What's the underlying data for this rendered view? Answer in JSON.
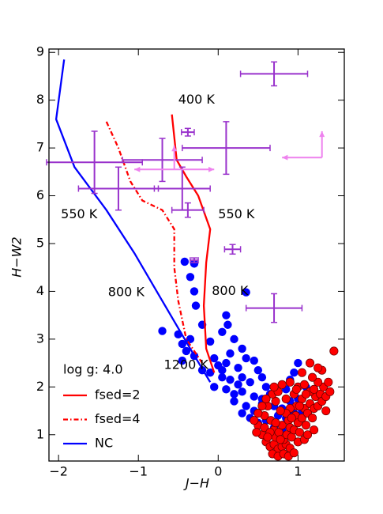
{
  "chart_data": {
    "type": "scatter",
    "xlabel": "J−H",
    "ylabel": "H−W2",
    "xlim": [
      -2.12,
      1.58
    ],
    "ylim": [
      0.45,
      9.07
    ],
    "xticks": [
      {
        "value": -2,
        "label": "−2"
      },
      {
        "value": -1,
        "label": "−1"
      },
      0,
      1
    ],
    "yticks": [
      1,
      2,
      3,
      4,
      5,
      6,
      7,
      8,
      9
    ],
    "legend": {
      "title": "log g: 4.0",
      "position": "lower left"
    },
    "series": [
      {
        "name": "fsed=2",
        "color": "#ff0000",
        "dash": "solid",
        "x": [
          -0.58,
          -0.52,
          -0.4,
          -0.25,
          -0.1,
          -0.15,
          -0.18,
          -0.15,
          -0.05
        ],
        "y": [
          7.7,
          6.75,
          6.4,
          6.0,
          5.3,
          4.6,
          3.7,
          2.8,
          2.3
        ]
      },
      {
        "name": "fsed=4",
        "color": "#ff0000",
        "dash": "dashdot",
        "x": [
          -1.4,
          -1.25,
          -1.1,
          -0.95,
          -0.7,
          -0.55,
          -0.55,
          -0.5,
          -0.4,
          -0.2
        ],
        "y": [
          7.55,
          7.0,
          6.3,
          5.9,
          5.7,
          5.3,
          4.5,
          3.8,
          3.0,
          2.5
        ]
      },
      {
        "name": "NC",
        "color": "#0000ff",
        "dash": "solid",
        "x": [
          -1.93,
          -2.03,
          -1.8,
          -1.4,
          -1.05,
          -0.7,
          -0.35,
          -0.1
        ],
        "y": [
          8.85,
          7.6,
          6.6,
          5.7,
          4.8,
          3.8,
          2.8,
          2.1
        ]
      }
    ],
    "scatter": [
      {
        "color": "#0000ff",
        "x": [
          -0.42,
          -0.3,
          -0.35,
          -0.3,
          -0.28,
          0.35,
          -0.7,
          -0.5,
          -0.45,
          -0.4,
          -0.3,
          -0.45,
          -0.35,
          -0.2,
          -0.1,
          0.1,
          0.12,
          0.05,
          0.2,
          0.3,
          0.15,
          -0.05,
          0.0,
          0.1,
          0.25,
          0.35,
          0.45,
          0.5,
          -0.1,
          -0.2,
          0.05,
          0.15,
          0.3,
          0.4,
          0.55,
          0.6,
          -0.05,
          0.1,
          0.2,
          0.3,
          0.45,
          0.55,
          0.65,
          0.75,
          0.85,
          0.95,
          1.0,
          0.9,
          1.1,
          0.2,
          0.35,
          0.45,
          0.55,
          0.7,
          0.8,
          0.9,
          1.0,
          0.4,
          0.5,
          0.6,
          0.75,
          0.85,
          0.95,
          1.05,
          0.7,
          0.65,
          0.8,
          0.3,
          0.25,
          0.05
        ],
        "y": [
          4.62,
          4.58,
          4.3,
          4.0,
          3.7,
          3.98,
          3.17,
          3.1,
          2.9,
          2.75,
          2.65,
          2.55,
          3.0,
          3.3,
          2.95,
          3.5,
          3.3,
          3.15,
          3.0,
          2.8,
          2.7,
          2.6,
          2.45,
          2.5,
          2.4,
          2.6,
          2.55,
          2.35,
          2.3,
          2.35,
          2.2,
          2.15,
          2.2,
          2.1,
          2.2,
          2.0,
          2.0,
          1.95,
          1.85,
          1.9,
          1.8,
          1.75,
          1.85,
          1.9,
          1.95,
          2.3,
          2.5,
          2.15,
          2.0,
          1.7,
          1.6,
          1.5,
          1.65,
          1.6,
          1.55,
          1.7,
          1.75,
          1.35,
          1.25,
          1.3,
          1.4,
          1.35,
          1.45,
          1.5,
          1.15,
          1.0,
          1.1,
          1.45,
          2.05,
          2.35
        ]
      },
      {
        "color": "#ff0000",
        "x": [
          0.5,
          0.55,
          0.6,
          0.65,
          0.7,
          0.75,
          0.8,
          0.85,
          0.9,
          0.58,
          0.62,
          0.66,
          0.7,
          0.72,
          0.76,
          0.8,
          0.82,
          0.86,
          0.88,
          0.9,
          0.92,
          0.95,
          0.97,
          1.0,
          1.02,
          1.05,
          1.08,
          1.1,
          1.12,
          1.15,
          1.18,
          1.2,
          1.22,
          1.25,
          1.28,
          1.3,
          1.32,
          1.35,
          1.38,
          1.25,
          1.15,
          1.05,
          0.98,
          0.9,
          0.85,
          0.78,
          0.72,
          0.68,
          0.75,
          0.85,
          0.95,
          1.0,
          1.08,
          1.18,
          1.3,
          1.05,
          1.45,
          0.6,
          0.55,
          0.5,
          0.45,
          0.48,
          0.58,
          0.65,
          0.68,
          0.75,
          0.82,
          0.88,
          0.95,
          1.0,
          1.08,
          1.12,
          1.2,
          0.98,
          1.1,
          1.2,
          1.35,
          1.4,
          0.8,
          0.7,
          0.9,
          1.25,
          1.15,
          0.62,
          0.72,
          0.78,
          0.92,
          1.02
        ],
        "y": [
          1.2,
          1.0,
          0.85,
          0.75,
          0.8,
          0.7,
          0.75,
          0.8,
          0.72,
          1.4,
          1.6,
          1.3,
          1.1,
          0.95,
          1.05,
          1.2,
          0.9,
          1.0,
          1.3,
          1.15,
          0.95,
          1.1,
          1.4,
          1.25,
          1.05,
          1.35,
          1.55,
          1.2,
          1.45,
          1.65,
          1.35,
          1.55,
          1.8,
          1.6,
          1.85,
          1.7,
          2.0,
          1.8,
          2.1,
          2.1,
          1.9,
          1.75,
          1.6,
          1.55,
          1.45,
          1.5,
          1.7,
          1.85,
          1.9,
          1.75,
          1.85,
          2.0,
          2.05,
          2.2,
          2.35,
          2.3,
          2.75,
          1.75,
          1.6,
          1.45,
          1.3,
          1.05,
          1.15,
          1.05,
          0.6,
          0.55,
          0.6,
          0.55,
          0.62,
          0.85,
          0.9,
          1.0,
          1.1,
          1.95,
          1.85,
          1.95,
          1.5,
          1.9,
          2.05,
          2.0,
          2.1,
          2.4,
          2.5,
          0.95,
          1.25,
          0.9,
          1.35,
          1.6
        ]
      }
    ],
    "errorbars": {
      "color": "#9932cc",
      "x": [
        0.7,
        0.1,
        -0.38,
        -0.7,
        -1.55,
        -1.25,
        -0.45,
        -0.38,
        0.18,
        -0.3,
        0.7
      ],
      "y": [
        8.55,
        7.0,
        7.33,
        6.75,
        6.7,
        6.15,
        6.15,
        5.7,
        4.88,
        4.65,
        3.65
      ],
      "xerr": [
        0.42,
        0.55,
        0.08,
        0.5,
        0.6,
        0.5,
        0.35,
        0.2,
        0.1,
        0.05,
        0.35
      ],
      "yerr": [
        0.25,
        0.55,
        0.08,
        0.45,
        0.65,
        0.45,
        0.45,
        0.15,
        0.1,
        0.05,
        0.3
      ]
    },
    "limits": {
      "color": "#ee82ee",
      "x": [
        -0.55,
        1.3
      ],
      "y": [
        6.55,
        6.8
      ],
      "xerr": [
        0.5,
        0.5
      ],
      "yerr": [
        0.5,
        0.55
      ]
    },
    "annotations": [
      {
        "text": "400 K",
        "x": -0.5,
        "y": 8.0
      },
      {
        "text": "550 K",
        "x": -1.97,
        "y": 5.6
      },
      {
        "text": "550 K",
        "x": 0.0,
        "y": 5.6
      },
      {
        "text": "800 K",
        "x": -1.38,
        "y": 3.97
      },
      {
        "text": "800 K",
        "x": -0.08,
        "y": 4.0
      },
      {
        "text": "1200 K",
        "x": -0.68,
        "y": 2.45
      }
    ]
  }
}
